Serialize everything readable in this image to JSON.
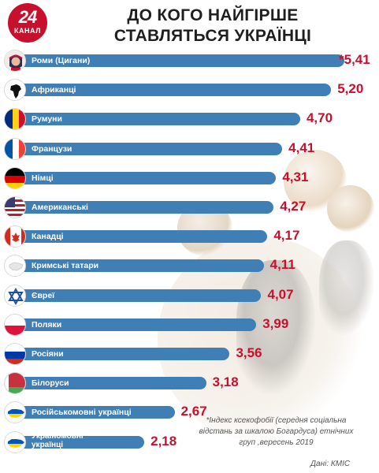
{
  "logo": {
    "number": "24",
    "subtitle": "КАНАЛ"
  },
  "title": {
    "line1": "ДО КОГО НАЙГІРШЕ",
    "line2": "СТАВЛЯТЬСЯ УКРАЇНЦІ"
  },
  "chart_data": {
    "type": "bar",
    "orientation": "horizontal",
    "title": "ДО КОГО НАЙГІРШЕ СТАВЛЯТЬСЯ УКРАЇНЦІ",
    "categories": [
      "Роми (Цигани)",
      "Африканці",
      "Румуни",
      "Французи",
      "Німці",
      "Американські",
      "Канадці",
      "Кримські татари",
      "Євреї",
      "Поляки",
      "Росіяни",
      "Білоруси",
      "Російськомовні українці",
      "Україномовні українці"
    ],
    "value_labels": [
      "*5,41",
      "5,20",
      "4,70",
      "4,41",
      "4,31",
      "4,27",
      "4,17",
      "4,11",
      "4,07",
      "3,99",
      "3,56",
      "3,18",
      "2,67",
      "2,18"
    ],
    "values": [
      5.41,
      5.2,
      4.7,
      4.41,
      4.31,
      4.27,
      4.17,
      4.11,
      4.07,
      3.99,
      3.56,
      3.18,
      2.67,
      2.18
    ],
    "icons": [
      "roma-woman-icon",
      "africa-map-icon",
      "romania-flag-icon",
      "france-flag-icon",
      "germany-flag-icon",
      "usa-flag-icon",
      "canada-flag-icon",
      "crimea-map-icon",
      "star-of-david-icon",
      "poland-flag-icon",
      "russia-flag-icon",
      "belarus-flag-icon",
      "ukraine-map-icon",
      "ukraine-map-icon"
    ],
    "bar_color": "#3f7fb5",
    "value_color": "#c7102e",
    "legend": "none",
    "grid": false
  },
  "footnote": {
    "lines": [
      "*Індекс ксекофобії (середня соціальна",
      "відстань за шкалою Богардуса) етнічних",
      "груп ,вересень 2019"
    ]
  },
  "source": "Дані: КМІС"
}
